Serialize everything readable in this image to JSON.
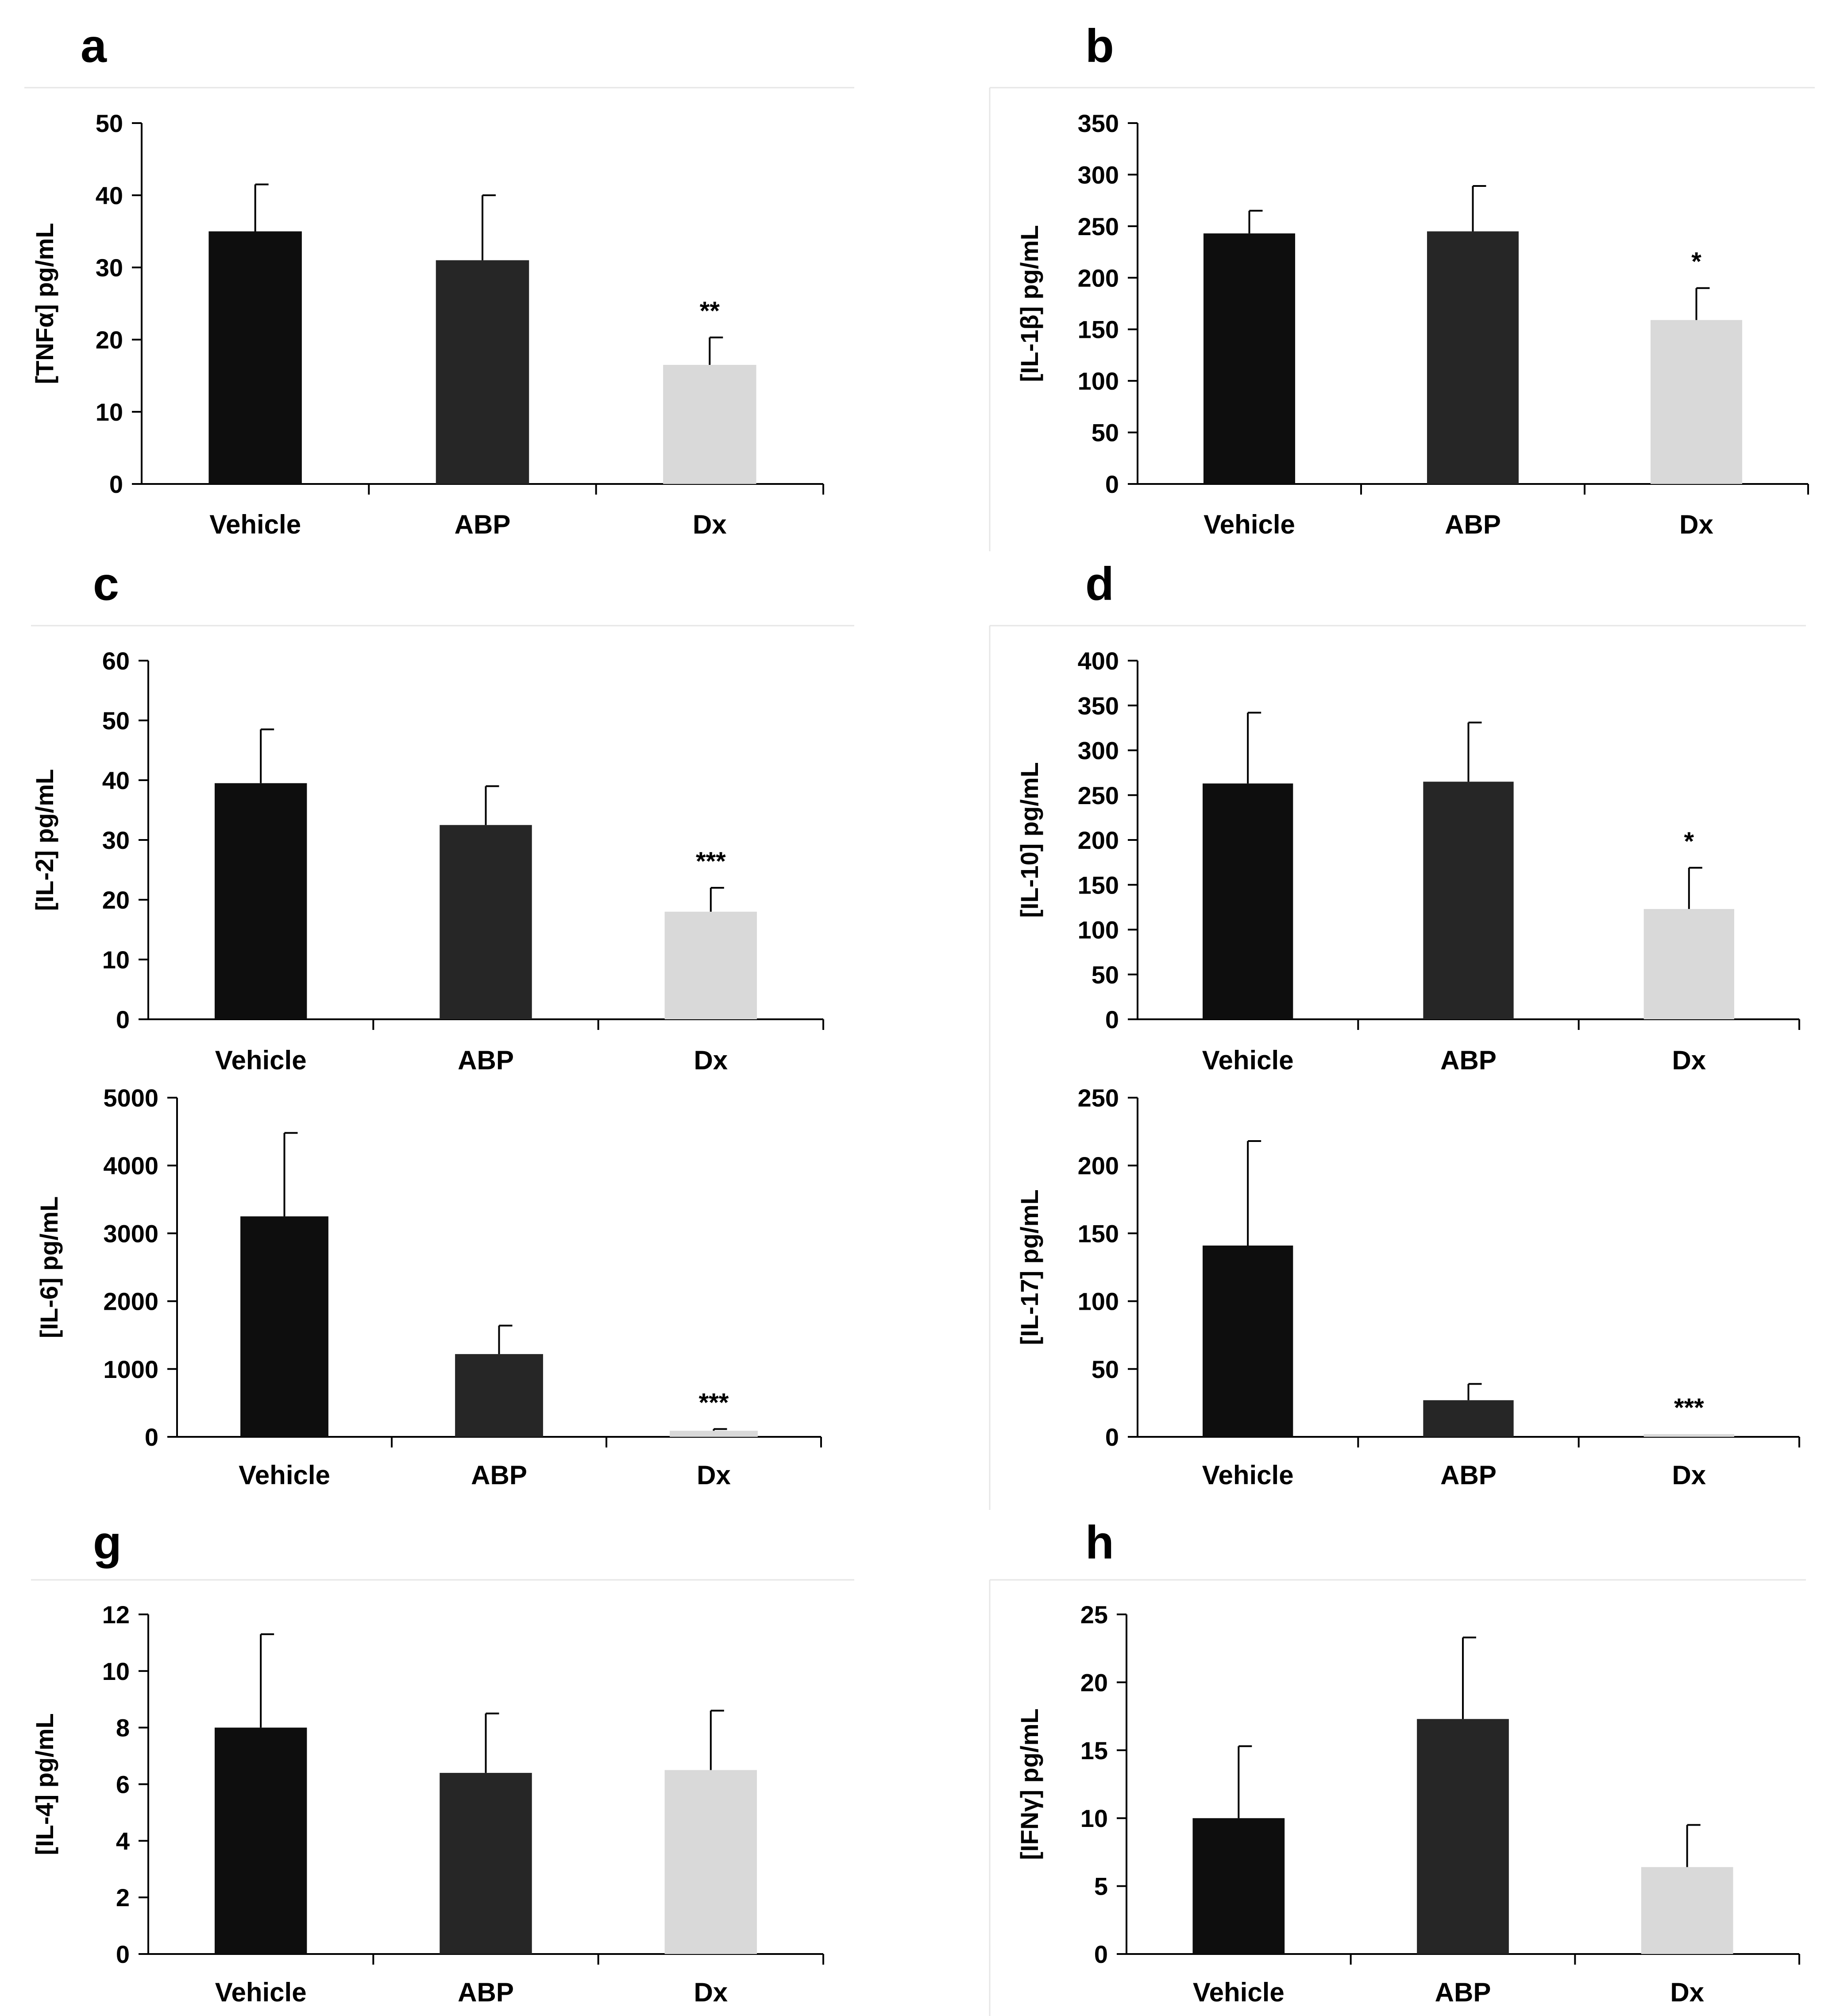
{
  "figure": {
    "panel_letters": [
      "a",
      "b",
      "c",
      "d",
      "g",
      "h"
    ]
  },
  "colors": {
    "Vehicle": "#0e0e0e",
    "ABP": "#262626",
    "Dx": "#d9d9d9",
    "axis": "#000000",
    "separator": "#e6e6e6"
  },
  "chart_data": [
    {
      "id": "tnfa",
      "type": "bar",
      "ylabel": "[TNFα] pg/mL",
      "categories": [
        "Vehicle",
        "ABP",
        "Dx"
      ],
      "values": [
        35,
        31,
        16.5
      ],
      "errors": [
        6.5,
        9,
        3.8
      ],
      "significance": [
        "",
        "",
        "**"
      ],
      "ylim": [
        0,
        50
      ],
      "yticks": [
        0,
        10,
        20,
        30,
        40,
        50
      ]
    },
    {
      "id": "il1b",
      "type": "bar",
      "ylabel": "[IL-1β] pg/mL",
      "categories": [
        "Vehicle",
        "ABP",
        "Dx"
      ],
      "values": [
        243,
        245,
        159
      ],
      "errors": [
        22,
        44,
        31
      ],
      "significance": [
        "",
        "",
        "*"
      ],
      "ylim": [
        0,
        350
      ],
      "yticks": [
        0,
        50,
        100,
        150,
        200,
        250,
        300,
        350
      ]
    },
    {
      "id": "il2",
      "type": "bar",
      "ylabel": "[IL-2] pg/mL",
      "categories": [
        "Vehicle",
        "ABP",
        "Dx"
      ],
      "values": [
        39.5,
        32.5,
        18
      ],
      "errors": [
        9,
        6.5,
        4
      ],
      "significance": [
        "",
        "",
        "***"
      ],
      "ylim": [
        0,
        60
      ],
      "yticks": [
        0,
        10,
        20,
        30,
        40,
        50,
        60
      ]
    },
    {
      "id": "il10",
      "type": "bar",
      "ylabel": "[IL-10] pg/mL",
      "categories": [
        "Vehicle",
        "ABP",
        "Dx"
      ],
      "values": [
        263,
        265,
        123
      ],
      "errors": [
        79,
        66,
        46
      ],
      "significance": [
        "",
        "",
        "*"
      ],
      "ylim": [
        0,
        400
      ],
      "yticks": [
        0,
        50,
        100,
        150,
        200,
        250,
        300,
        350,
        400
      ]
    },
    {
      "id": "il6",
      "type": "bar",
      "ylabel": "[IL-6] pg/mL",
      "categories": [
        "Vehicle",
        "ABP",
        "Dx"
      ],
      "values": [
        3250,
        1220,
        90
      ],
      "errors": [
        1230,
        420,
        25
      ],
      "significance": [
        "",
        "",
        "***"
      ],
      "ylim": [
        0,
        5000
      ],
      "yticks": [
        0,
        1000,
        2000,
        3000,
        4000,
        5000
      ]
    },
    {
      "id": "il17",
      "type": "bar",
      "ylabel": "[IL-17] pg/mL",
      "categories": [
        "Vehicle",
        "ABP",
        "Dx"
      ],
      "values": [
        141,
        27,
        2
      ],
      "errors": [
        77,
        12,
        0
      ],
      "significance": [
        "",
        "",
        "***"
      ],
      "ylim": [
        0,
        250
      ],
      "yticks": [
        0,
        50,
        100,
        150,
        200,
        250
      ]
    },
    {
      "id": "il4",
      "type": "bar",
      "ylabel": "[IL-4] pg/mL",
      "categories": [
        "Vehicle",
        "ABP",
        "Dx"
      ],
      "values": [
        8,
        6.4,
        6.5
      ],
      "errors": [
        3.3,
        2.1,
        2.1
      ],
      "significance": [
        "",
        "",
        ""
      ],
      "ylim": [
        0,
        12
      ],
      "yticks": [
        0,
        2,
        4,
        6,
        8,
        10,
        12
      ]
    },
    {
      "id": "ifng",
      "type": "bar",
      "ylabel": "[IFNγ] pg/mL",
      "categories": [
        "Vehicle",
        "ABP",
        "Dx"
      ],
      "values": [
        10,
        17.3,
        6.4
      ],
      "errors": [
        5.3,
        6,
        3.1
      ],
      "significance": [
        "",
        "",
        ""
      ],
      "ylim": [
        0,
        25
      ],
      "yticks": [
        0,
        5,
        10,
        15,
        20,
        25
      ]
    }
  ]
}
